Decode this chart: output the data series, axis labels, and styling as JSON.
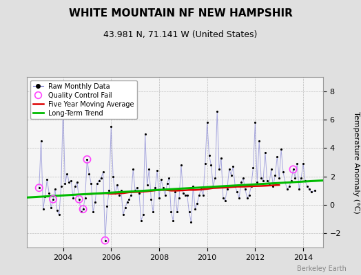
{
  "title": "WHITE MOUNTAIN NF NEW HAMPSHIR",
  "subtitle": "43.981 N, 71.141 W (United States)",
  "ylabel": "Temperature Anomaly (°C)",
  "credit": "Berkeley Earth",
  "xlim": [
    2002.5,
    2014.83
  ],
  "ylim": [
    -3.0,
    9.0
  ],
  "yticks": [
    -2,
    0,
    2,
    4,
    6,
    8
  ],
  "xticks": [
    2004,
    2006,
    2008,
    2010,
    2012,
    2014
  ],
  "bg_color": "#e0e0e0",
  "plot_bg_color": "#f5f5f5",
  "raw_color": "#6666cc",
  "raw_line_alpha": 0.55,
  "marker_color": "#000000",
  "qc_color": "#ff44ff",
  "moving_avg_color": "#dd0000",
  "trend_color": "#00bb00",
  "title_fontsize": 11,
  "subtitle_fontsize": 9,
  "raw_data_x": [
    2003.0,
    2003.083,
    2003.167,
    2003.25,
    2003.333,
    2003.417,
    2003.5,
    2003.583,
    2003.667,
    2003.75,
    2003.833,
    2003.917,
    2004.0,
    2004.083,
    2004.167,
    2004.25,
    2004.333,
    2004.417,
    2004.5,
    2004.583,
    2004.667,
    2004.75,
    2004.833,
    2004.917,
    2005.0,
    2005.083,
    2005.167,
    2005.25,
    2005.333,
    2005.417,
    2005.5,
    2005.583,
    2005.667,
    2005.75,
    2005.833,
    2005.917,
    2006.0,
    2006.083,
    2006.167,
    2006.25,
    2006.333,
    2006.417,
    2006.5,
    2006.583,
    2006.667,
    2006.75,
    2006.833,
    2006.917,
    2007.0,
    2007.083,
    2007.167,
    2007.25,
    2007.333,
    2007.417,
    2007.5,
    2007.583,
    2007.667,
    2007.75,
    2007.833,
    2007.917,
    2008.0,
    2008.083,
    2008.167,
    2008.25,
    2008.333,
    2008.417,
    2008.5,
    2008.583,
    2008.667,
    2008.75,
    2008.833,
    2008.917,
    2009.0,
    2009.083,
    2009.167,
    2009.25,
    2009.333,
    2009.417,
    2009.5,
    2009.583,
    2009.667,
    2009.75,
    2009.833,
    2009.917,
    2010.0,
    2010.083,
    2010.167,
    2010.25,
    2010.333,
    2010.417,
    2010.5,
    2010.583,
    2010.667,
    2010.75,
    2010.833,
    2010.917,
    2011.0,
    2011.083,
    2011.167,
    2011.25,
    2011.333,
    2011.417,
    2011.5,
    2011.583,
    2011.667,
    2011.75,
    2011.833,
    2011.917,
    2012.0,
    2012.083,
    2012.167,
    2012.25,
    2012.333,
    2012.417,
    2012.5,
    2012.583,
    2012.667,
    2012.75,
    2012.833,
    2012.917,
    2013.0,
    2013.083,
    2013.167,
    2013.25,
    2013.333,
    2013.417,
    2013.5,
    2013.583,
    2013.667,
    2013.75,
    2013.833,
    2013.917,
    2014.0,
    2014.083,
    2014.167,
    2014.25,
    2014.333,
    2014.5
  ],
  "raw_data_y": [
    1.2,
    4.5,
    -0.3,
    0.6,
    1.8,
    0.8,
    -0.2,
    0.4,
    1.1,
    -0.4,
    -0.7,
    1.3,
    6.8,
    1.5,
    2.2,
    1.6,
    1.7,
    0.5,
    1.3,
    1.6,
    0.4,
    -0.5,
    -0.3,
    0.5,
    3.2,
    2.2,
    1.5,
    -0.5,
    0.2,
    1.5,
    1.7,
    1.9,
    2.3,
    -2.5,
    -0.1,
    1.0,
    5.5,
    2.0,
    0.8,
    1.4,
    0.7,
    1.0,
    -0.7,
    -0.2,
    0.2,
    0.4,
    0.7,
    2.5,
    1.0,
    1.2,
    0.8,
    -1.1,
    -0.7,
    5.0,
    1.4,
    2.5,
    0.4,
    -0.5,
    1.2,
    2.4,
    0.5,
    1.8,
    1.2,
    0.7,
    1.5,
    1.9,
    -0.5,
    -1.1,
    0.9,
    -0.5,
    0.5,
    2.8,
    0.8,
    0.7,
    0.7,
    -0.5,
    -1.2,
    1.3,
    -0.3,
    0.1,
    0.7,
    1.1,
    0.7,
    2.9,
    5.8,
    3.5,
    2.8,
    1.3,
    1.9,
    6.6,
    2.5,
    3.3,
    0.5,
    0.3,
    1.1,
    2.5,
    2.1,
    2.7,
    1.3,
    0.9,
    0.5,
    1.6,
    1.9,
    1.1,
    0.5,
    0.7,
    1.3,
    2.6,
    5.8,
    1.6,
    4.5,
    1.9,
    1.7,
    3.7,
    1.7,
    1.5,
    2.5,
    1.3,
    2.1,
    3.4,
    1.9,
    3.9,
    2.3,
    1.6,
    1.1,
    1.3,
    1.7,
    2.5,
    1.9,
    2.9,
    1.1,
    1.9,
    2.9,
    1.7,
    1.3,
    1.1,
    0.9,
    1.0
  ],
  "qc_fail_x": [
    2003.0,
    2003.583,
    2004.667,
    2004.833,
    2005.0,
    2005.75,
    2013.583
  ],
  "qc_fail_y": [
    1.2,
    0.4,
    0.4,
    -0.3,
    3.2,
    -2.5,
    2.5
  ],
  "moving_avg_x": [
    2005.0,
    2005.25,
    2005.5,
    2005.75,
    2006.0,
    2006.25,
    2006.5,
    2006.75,
    2007.0,
    2007.25,
    2007.5,
    2007.75,
    2008.0,
    2008.25,
    2008.5,
    2008.75,
    2009.0,
    2009.25,
    2009.5,
    2009.75,
    2010.0,
    2010.25,
    2010.5,
    2010.75,
    2011.0,
    2011.25,
    2011.5,
    2011.75,
    2012.0,
    2012.25,
    2012.5,
    2012.75,
    2013.0
  ],
  "moving_avg_y": [
    0.75,
    0.78,
    0.8,
    0.82,
    0.78,
    0.8,
    0.82,
    0.88,
    0.9,
    0.92,
    0.95,
    1.0,
    1.05,
    1.05,
    1.0,
    1.0,
    1.02,
    1.05,
    1.05,
    1.08,
    1.12,
    1.18,
    1.2,
    1.22,
    1.25,
    1.28,
    1.28,
    1.3,
    1.32,
    1.33,
    1.35,
    1.38,
    1.4
  ],
  "trend_x": [
    2002.5,
    2014.83
  ],
  "trend_y": [
    0.52,
    1.72
  ]
}
